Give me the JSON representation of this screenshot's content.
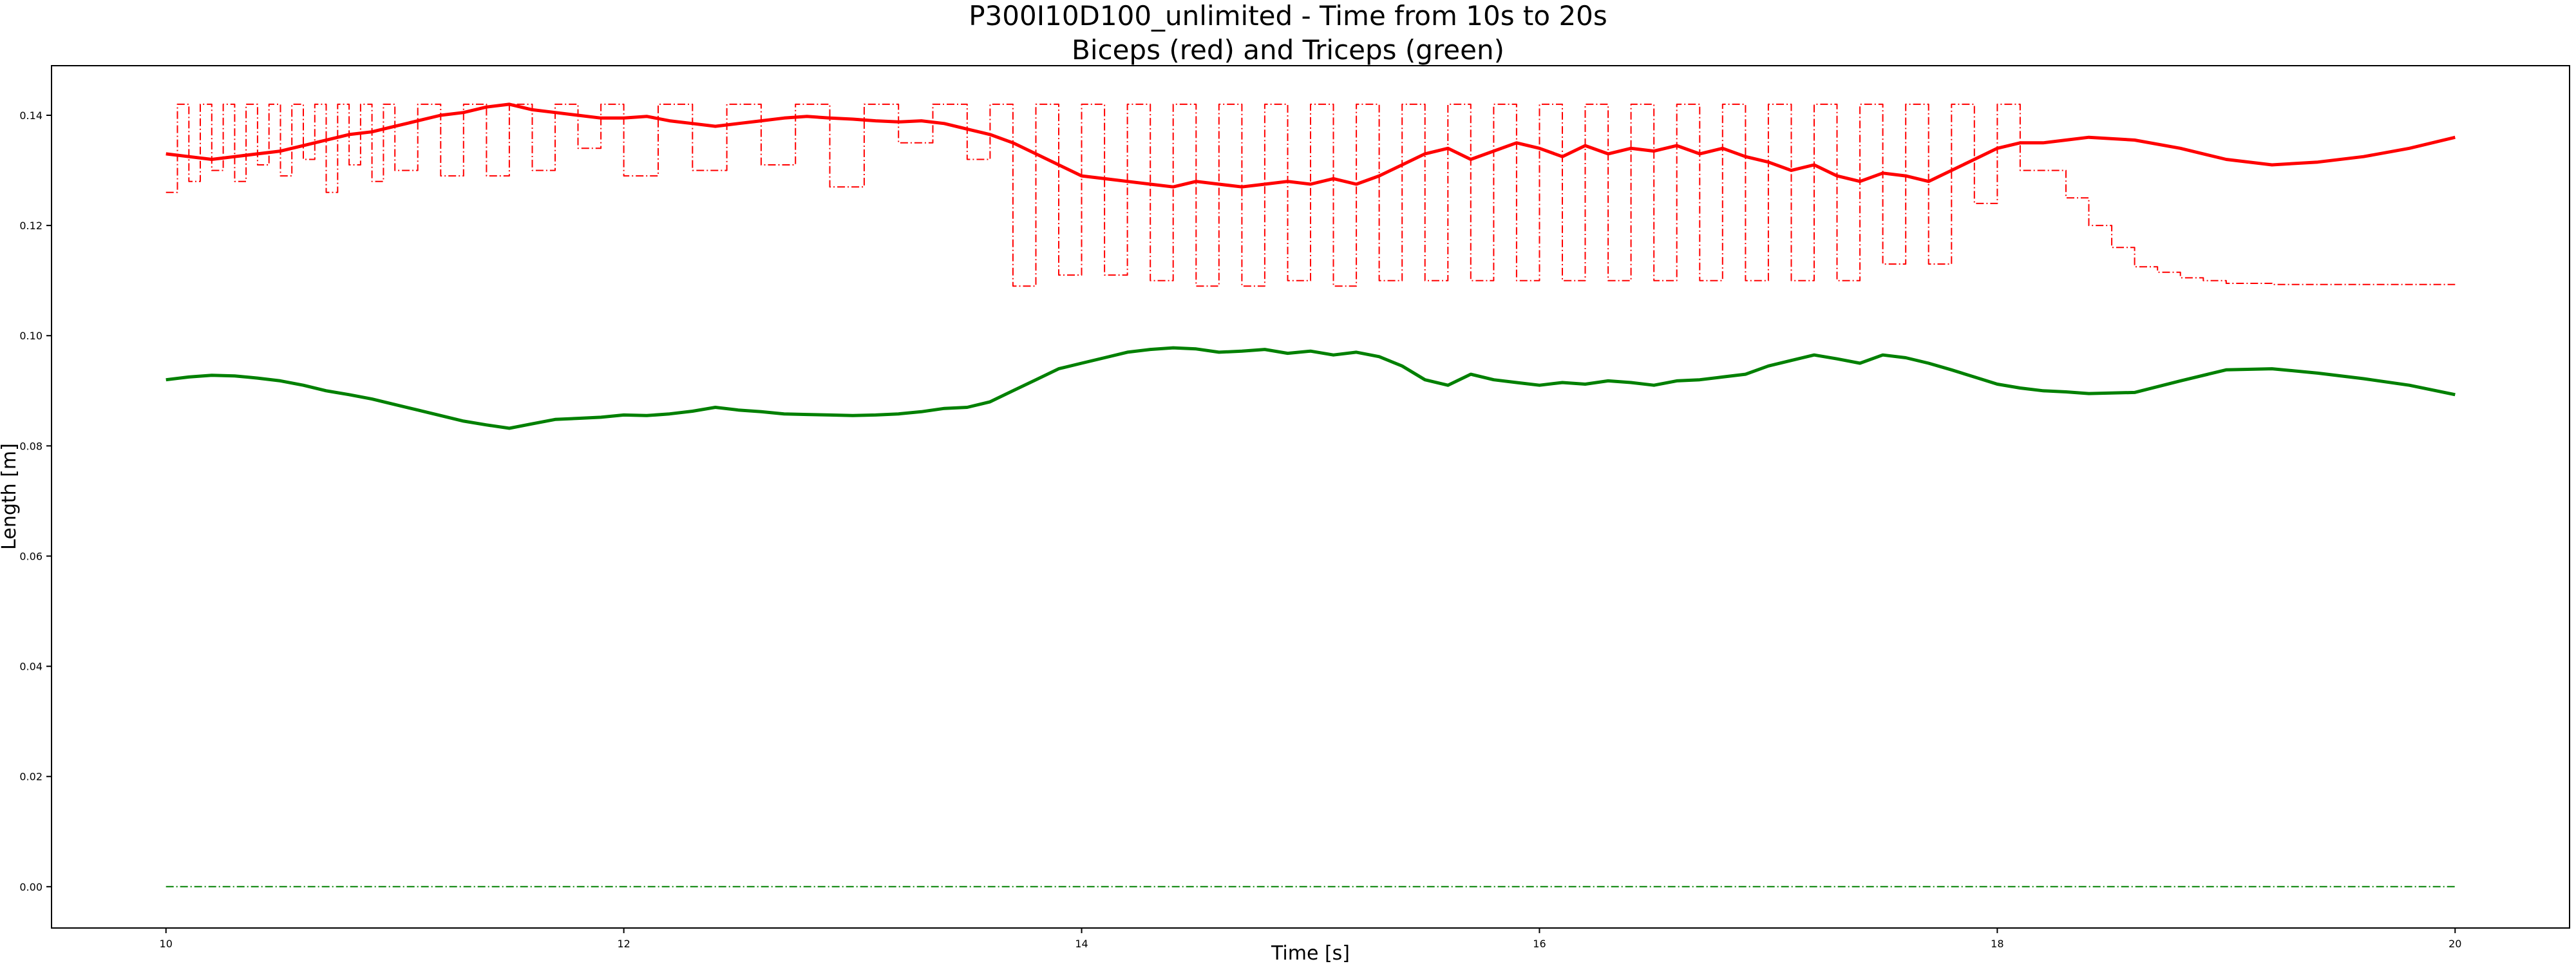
{
  "chart_data": {
    "type": "line",
    "title": "P300I10D100_unlimited - Time from 10s to 20s",
    "subtitle": "Biceps (red) and Triceps (green)",
    "xlabel": "Time [s]",
    "ylabel": "Length [m]",
    "xlim": [
      9.5,
      20.5
    ],
    "ylim": [
      -0.0075,
      0.149
    ],
    "x_ticks": [
      10,
      12,
      14,
      16,
      18,
      20
    ],
    "x_tick_labels": [
      "10",
      "12",
      "14",
      "16",
      "18",
      "20"
    ],
    "y_ticks": [
      0.0,
      0.02,
      0.04,
      0.06,
      0.08,
      0.1,
      0.12,
      0.14
    ],
    "y_tick_labels": [
      "0.00",
      "0.02",
      "0.04",
      "0.06",
      "0.08",
      "0.10",
      "0.12",
      "0.14"
    ],
    "grid": false,
    "legend": "none",
    "colors": {
      "biceps": "#ff0000",
      "triceps": "#008000"
    },
    "series": [
      {
        "muscle": "biceps",
        "style": "solid",
        "color": "#ff0000",
        "x": [
          10.0,
          10.1,
          10.2,
          10.3,
          10.4,
          10.5,
          10.6,
          10.7,
          10.8,
          10.9,
          11.0,
          11.1,
          11.2,
          11.3,
          11.4,
          11.5,
          11.6,
          11.7,
          11.8,
          11.9,
          12.0,
          12.1,
          12.2,
          12.3,
          12.4,
          12.5,
          12.6,
          12.7,
          12.8,
          12.9,
          13.0,
          13.1,
          13.2,
          13.3,
          13.4,
          13.5,
          13.6,
          13.7,
          13.8,
          13.9,
          14.0,
          14.1,
          14.2,
          14.3,
          14.4,
          14.5,
          14.6,
          14.7,
          14.8,
          14.9,
          15.0,
          15.1,
          15.2,
          15.3,
          15.4,
          15.5,
          15.6,
          15.7,
          15.8,
          15.9,
          16.0,
          16.1,
          16.2,
          16.3,
          16.4,
          16.5,
          16.6,
          16.7,
          16.8,
          16.9,
          17.0,
          17.1,
          17.2,
          17.3,
          17.4,
          17.5,
          17.6,
          17.7,
          17.8,
          17.9,
          18.0,
          18.1,
          18.2,
          18.3,
          18.4,
          18.6,
          18.8,
          19.0,
          19.2,
          19.4,
          19.6,
          19.8,
          20.0
        ],
        "y": [
          0.133,
          0.1325,
          0.132,
          0.1325,
          0.133,
          0.1335,
          0.1345,
          0.1355,
          0.1365,
          0.137,
          0.138,
          0.139,
          0.14,
          0.1405,
          0.1415,
          0.142,
          0.141,
          0.1405,
          0.14,
          0.1395,
          0.1395,
          0.1398,
          0.139,
          0.1385,
          0.138,
          0.1385,
          0.139,
          0.1395,
          0.1398,
          0.1395,
          0.1393,
          0.139,
          0.1388,
          0.139,
          0.1385,
          0.1375,
          0.1365,
          0.135,
          0.133,
          0.131,
          0.129,
          0.1285,
          0.128,
          0.1275,
          0.127,
          0.128,
          0.1275,
          0.127,
          0.1275,
          0.128,
          0.1275,
          0.1285,
          0.1275,
          0.129,
          0.131,
          0.133,
          0.134,
          0.132,
          0.1335,
          0.135,
          0.134,
          0.1325,
          0.1345,
          0.133,
          0.134,
          0.1335,
          0.1345,
          0.133,
          0.134,
          0.1325,
          0.1315,
          0.13,
          0.131,
          0.129,
          0.128,
          0.1295,
          0.129,
          0.128,
          0.13,
          0.132,
          0.134,
          0.135,
          0.135,
          0.1355,
          0.136,
          0.1355,
          0.134,
          0.132,
          0.131,
          0.1315,
          0.1325,
          0.134,
          0.136
        ]
      },
      {
        "muscle": "biceps",
        "style": "dash-dot",
        "color": "#ff0000",
        "x": [
          10.0,
          10.05,
          10.1,
          10.15,
          10.2,
          10.25,
          10.3,
          10.35,
          10.4,
          10.45,
          10.5,
          10.55,
          10.6,
          10.65,
          10.7,
          10.75,
          10.8,
          10.85,
          10.9,
          10.95,
          11.0,
          11.1,
          11.2,
          11.3,
          11.4,
          11.5,
          11.6,
          11.7,
          11.8,
          11.9,
          12.0,
          12.15,
          12.3,
          12.45,
          12.6,
          12.75,
          12.9,
          13.05,
          13.2,
          13.35,
          13.5,
          13.6,
          13.7,
          13.8,
          13.9,
          14.0,
          14.1,
          14.2,
          14.3,
          14.4,
          14.5,
          14.6,
          14.7,
          14.8,
          14.9,
          15.0,
          15.1,
          15.2,
          15.3,
          15.4,
          15.5,
          15.6,
          15.7,
          15.8,
          15.9,
          16.0,
          16.1,
          16.2,
          16.3,
          16.4,
          16.5,
          16.6,
          16.7,
          16.8,
          16.9,
          17.0,
          17.1,
          17.2,
          17.3,
          17.4,
          17.5,
          17.6,
          17.7,
          17.8,
          17.9,
          18.0,
          18.1,
          18.2,
          18.3,
          18.4,
          18.5,
          18.6,
          18.7,
          18.8,
          18.9,
          19.0,
          19.2,
          19.4,
          19.6,
          19.8,
          20.0
        ],
        "y": [
          0.126,
          0.142,
          0.128,
          0.142,
          0.13,
          0.142,
          0.128,
          0.142,
          0.131,
          0.142,
          0.129,
          0.142,
          0.132,
          0.142,
          0.126,
          0.142,
          0.131,
          0.142,
          0.128,
          0.142,
          0.13,
          0.142,
          0.129,
          0.142,
          0.129,
          0.142,
          0.13,
          0.142,
          0.134,
          0.142,
          0.129,
          0.142,
          0.13,
          0.142,
          0.131,
          0.142,
          0.127,
          0.142,
          0.135,
          0.142,
          0.132,
          0.142,
          0.109,
          0.142,
          0.111,
          0.142,
          0.111,
          0.142,
          0.11,
          0.142,
          0.109,
          0.142,
          0.109,
          0.142,
          0.11,
          0.142,
          0.109,
          0.142,
          0.11,
          0.142,
          0.11,
          0.142,
          0.11,
          0.142,
          0.11,
          0.142,
          0.11,
          0.142,
          0.11,
          0.142,
          0.11,
          0.142,
          0.11,
          0.142,
          0.11,
          0.142,
          0.11,
          0.142,
          0.11,
          0.142,
          0.113,
          0.142,
          0.113,
          0.142,
          0.124,
          0.142,
          0.13,
          0.13,
          0.125,
          0.12,
          0.116,
          0.1125,
          0.1115,
          0.1105,
          0.11,
          0.1095,
          0.1093,
          0.1093,
          0.1093,
          0.1093,
          0.1093
        ]
      },
      {
        "muscle": "triceps",
        "style": "solid",
        "color": "#008000",
        "x": [
          10.0,
          10.1,
          10.2,
          10.3,
          10.4,
          10.5,
          10.6,
          10.7,
          10.8,
          10.9,
          11.0,
          11.1,
          11.2,
          11.3,
          11.4,
          11.5,
          11.6,
          11.7,
          11.8,
          11.9,
          12.0,
          12.1,
          12.2,
          12.3,
          12.4,
          12.5,
          12.6,
          12.7,
          12.8,
          12.9,
          13.0,
          13.1,
          13.2,
          13.3,
          13.4,
          13.5,
          13.6,
          13.7,
          13.8,
          13.9,
          14.0,
          14.1,
          14.2,
          14.3,
          14.4,
          14.5,
          14.6,
          14.7,
          14.8,
          14.9,
          15.0,
          15.1,
          15.2,
          15.3,
          15.4,
          15.5,
          15.6,
          15.7,
          15.8,
          15.9,
          16.0,
          16.1,
          16.2,
          16.3,
          16.4,
          16.5,
          16.6,
          16.7,
          16.8,
          16.9,
          17.0,
          17.1,
          17.2,
          17.3,
          17.4,
          17.5,
          17.6,
          17.7,
          17.8,
          17.9,
          18.0,
          18.1,
          18.2,
          18.3,
          18.4,
          18.6,
          18.8,
          19.0,
          19.2,
          19.4,
          19.6,
          19.8,
          20.0
        ],
        "y": [
          0.092,
          0.0925,
          0.0928,
          0.0927,
          0.0923,
          0.0918,
          0.091,
          0.09,
          0.0893,
          0.0885,
          0.0875,
          0.0865,
          0.0855,
          0.0845,
          0.0838,
          0.0832,
          0.084,
          0.0848,
          0.085,
          0.0852,
          0.0856,
          0.0855,
          0.0858,
          0.0863,
          0.087,
          0.0865,
          0.0862,
          0.0858,
          0.0857,
          0.0856,
          0.0855,
          0.0856,
          0.0858,
          0.0862,
          0.0868,
          0.087,
          0.088,
          0.09,
          0.092,
          0.094,
          0.095,
          0.096,
          0.097,
          0.0975,
          0.0978,
          0.0976,
          0.097,
          0.0972,
          0.0975,
          0.0968,
          0.0972,
          0.0965,
          0.097,
          0.0962,
          0.0945,
          0.092,
          0.091,
          0.093,
          0.092,
          0.0915,
          0.091,
          0.0915,
          0.0912,
          0.0918,
          0.0915,
          0.091,
          0.0918,
          0.092,
          0.0925,
          0.093,
          0.0945,
          0.0955,
          0.0965,
          0.0958,
          0.095,
          0.0965,
          0.096,
          0.095,
          0.0938,
          0.0925,
          0.0912,
          0.0905,
          0.09,
          0.0898,
          0.0895,
          0.0897,
          0.0918,
          0.0938,
          0.094,
          0.0932,
          0.0922,
          0.091,
          0.0893
        ]
      },
      {
        "muscle": "triceps",
        "style": "dash-dot",
        "color": "#008000",
        "x": [
          10.0,
          20.0
        ],
        "y": [
          0.0,
          0.0
        ]
      }
    ]
  }
}
